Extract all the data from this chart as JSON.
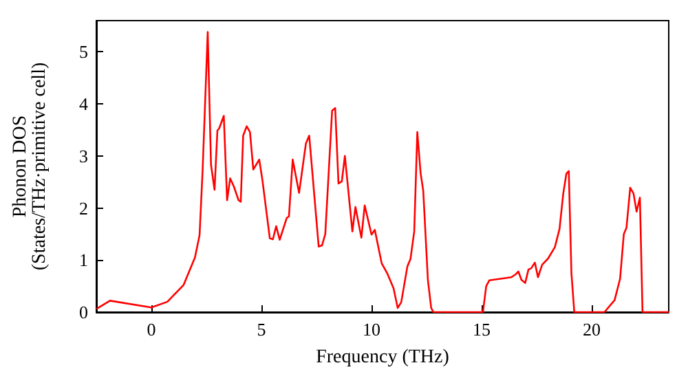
{
  "chart_data": {
    "type": "line",
    "xlabel": "Frequency (THz)",
    "ylabel": "Phonon DOS\n(States/THz·primitive cell)",
    "xlim": [
      -2.5,
      23.5
    ],
    "xticks": [
      0,
      5,
      10,
      15,
      20
    ],
    "ylim": [
      0,
      5.6
    ],
    "yticks": [
      0,
      1,
      2,
      3,
      4,
      5
    ],
    "grid": false,
    "marker": "none",
    "line_style": "solid",
    "series": [
      {
        "color": "#ff0000",
        "x": [
          -2.46,
          -1.88,
          0,
          0.73,
          1.46,
          1.98,
          2.19,
          2.33,
          2.56,
          2.71,
          2.87,
          3.0,
          3.08,
          3.29,
          3.44,
          3.58,
          3.75,
          3.96,
          4.06,
          4.17,
          4.33,
          4.48,
          4.63,
          4.9,
          5.04,
          5.38,
          5.52,
          5.67,
          5.83,
          6.15,
          6.25,
          6.42,
          6.71,
          7.02,
          7.17,
          7.6,
          7.75,
          7.9,
          8.21,
          8.35,
          8.5,
          8.65,
          8.79,
          9.13,
          9.27,
          9.54,
          9.69,
          10.0,
          10.15,
          10.46,
          10.73,
          11.0,
          11.19,
          11.35,
          11.63,
          11.77,
          11.94,
          12.08,
          12.23,
          12.35,
          12.56,
          12.71,
          12.81,
          15.06,
          15.21,
          15.35,
          16.35,
          16.56,
          16.67,
          16.81,
          16.98,
          17.13,
          17.25,
          17.42,
          17.56,
          17.75,
          18.02,
          18.33,
          18.54,
          18.71,
          18.85,
          18.96,
          19.08,
          19.21,
          20.58,
          21.04,
          21.29,
          21.46,
          21.58,
          21.75,
          21.9,
          22.04,
          22.19,
          22.31,
          23.5
        ],
        "values": [
          0.07,
          0.22,
          0.09,
          0.2,
          0.52,
          1.05,
          1.48,
          2.74,
          5.38,
          2.83,
          2.35,
          3.49,
          3.53,
          3.77,
          2.15,
          2.57,
          2.41,
          2.15,
          2.12,
          3.39,
          3.57,
          3.46,
          2.74,
          2.93,
          2.55,
          1.42,
          1.4,
          1.65,
          1.39,
          1.81,
          1.84,
          2.93,
          2.29,
          3.24,
          3.39,
          1.26,
          1.28,
          1.5,
          3.87,
          3.92,
          2.47,
          2.51,
          3.0,
          1.55,
          2.02,
          1.43,
          2.05,
          1.49,
          1.58,
          0.94,
          0.73,
          0.46,
          0.08,
          0.19,
          0.88,
          1.02,
          1.55,
          3.46,
          2.67,
          2.33,
          0.62,
          0.08,
          0,
          0,
          0.5,
          0.61,
          0.67,
          0.73,
          0.78,
          0.62,
          0.56,
          0.82,
          0.84,
          0.95,
          0.67,
          0.91,
          1.03,
          1.25,
          1.6,
          2.28,
          2.66,
          2.71,
          0.75,
          0,
          0,
          0.23,
          0.64,
          1.5,
          1.62,
          2.39,
          2.28,
          1.93,
          2.2,
          0,
          0
        ]
      }
    ]
  }
}
